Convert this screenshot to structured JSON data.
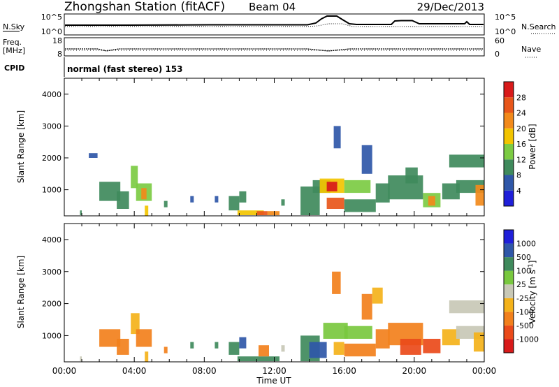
{
  "header": {
    "title": "Zhongshan Station (fitACF)",
    "beam": "Beam 04",
    "date": "29/Dec/2013"
  },
  "status": {
    "nsky_label": "N.Sky",
    "nsky_ticks": [
      "10^5",
      "10^0"
    ],
    "nsearch_label": "N.Search",
    "nsearch_ticks": [
      "10^5",
      "10^0"
    ],
    "freq_label": "Freq.",
    "freq_unit": "[MHz]",
    "freq_ticks": [
      "18",
      "8"
    ],
    "nave_label": "Nave",
    "nave_ticks": [
      "60",
      "0"
    ],
    "cpid_label": "CPID",
    "cpid_text": "normal (fast stereo) 153"
  },
  "colors": {
    "power": [
      "#1f1fd9",
      "#2f57a8",
      "#3f8a5c",
      "#7ccb43",
      "#f2c400",
      "#f28a1b",
      "#e8561a",
      "#d81a1a"
    ],
    "velocity": [
      "#d81a1a",
      "#ea4a1a",
      "#f2801c",
      "#f4b21a",
      "#c8c8b6",
      "#79c83f",
      "#3f8a5c",
      "#2f57a8",
      "#1f1fd9"
    ]
  },
  "chart_data": [
    {
      "type": "heatmap",
      "name": "power",
      "xlabel": "",
      "ylabel": "Slant Range [km]",
      "x_ticks": [
        "00:00",
        "04:00",
        "08:00",
        "12:00",
        "16:00",
        "20:00",
        "00:00"
      ],
      "y_ticks": [
        "1000",
        "2000",
        "3000",
        "4000"
      ],
      "ylim": [
        180,
        4500
      ],
      "xlim_hours": [
        0,
        24
      ],
      "colorbar": {
        "label": "Power [dB]",
        "ticks": [
          "4",
          "8",
          "12",
          "16",
          "20",
          "24",
          "28"
        ],
        "range": [
          0,
          32
        ]
      },
      "patches": [
        {
          "t0": 0.9,
          "t1": 1.0,
          "r0": 200,
          "r1": 350,
          "v": 8
        },
        {
          "t0": 1.4,
          "t1": 1.9,
          "r0": 2000,
          "r1": 2150,
          "v": 6
        },
        {
          "t0": 2.0,
          "t1": 3.2,
          "r0": 650,
          "r1": 1250,
          "v": 9
        },
        {
          "t0": 3.0,
          "t1": 3.7,
          "r0": 400,
          "r1": 950,
          "v": 10
        },
        {
          "t0": 3.8,
          "t1": 4.2,
          "r0": 1050,
          "r1": 1750,
          "v": 14
        },
        {
          "t0": 4.1,
          "t1": 5.0,
          "r0": 650,
          "r1": 1200,
          "v": 13
        },
        {
          "t0": 4.4,
          "t1": 4.7,
          "r0": 700,
          "r1": 1050,
          "v": 21
        },
        {
          "t0": 4.6,
          "t1": 4.8,
          "r0": 180,
          "r1": 500,
          "v": 16
        },
        {
          "t0": 5.7,
          "t1": 5.9,
          "r0": 450,
          "r1": 650,
          "v": 8
        },
        {
          "t0": 7.2,
          "t1": 7.4,
          "r0": 600,
          "r1": 800,
          "v": 6
        },
        {
          "t0": 8.6,
          "t1": 8.8,
          "r0": 600,
          "r1": 800,
          "v": 7
        },
        {
          "t0": 9.4,
          "t1": 10.0,
          "r0": 350,
          "r1": 800,
          "v": 10
        },
        {
          "t0": 10.0,
          "t1": 10.4,
          "r0": 600,
          "r1": 950,
          "v": 9
        },
        {
          "t0": 9.9,
          "t1": 11.4,
          "r0": 200,
          "r1": 350,
          "v": 17
        },
        {
          "t0": 11.0,
          "t1": 11.6,
          "r0": 200,
          "r1": 330,
          "v": 27
        },
        {
          "t0": 11.6,
          "t1": 12.3,
          "r0": 200,
          "r1": 330,
          "v": 20
        },
        {
          "t0": 12.4,
          "t1": 12.6,
          "r0": 500,
          "r1": 700,
          "v": 8
        },
        {
          "t0": 13.5,
          "t1": 14.6,
          "r0": 200,
          "r1": 1100,
          "v": 8
        },
        {
          "t0": 14.2,
          "t1": 15.2,
          "r0": 900,
          "r1": 1300,
          "v": 10
        },
        {
          "t0": 14.6,
          "t1": 16.0,
          "r0": 900,
          "r1": 1350,
          "v": 18
        },
        {
          "t0": 15.0,
          "t1": 15.6,
          "r0": 950,
          "r1": 1250,
          "v": 29
        },
        {
          "t0": 15.0,
          "t1": 16.0,
          "r0": 400,
          "r1": 750,
          "v": 24
        },
        {
          "t0": 15.4,
          "t1": 15.8,
          "r0": 2300,
          "r1": 3000,
          "v": 6
        },
        {
          "t0": 16.0,
          "t1": 17.5,
          "r0": 900,
          "r1": 1300,
          "v": 15
        },
        {
          "t0": 16.0,
          "t1": 17.8,
          "r0": 300,
          "r1": 700,
          "v": 9
        },
        {
          "t0": 17.0,
          "t1": 17.6,
          "r0": 1500,
          "r1": 2400,
          "v": 7
        },
        {
          "t0": 17.8,
          "t1": 18.6,
          "r0": 600,
          "r1": 1200,
          "v": 11
        },
        {
          "t0": 18.5,
          "t1": 20.5,
          "r0": 700,
          "r1": 1450,
          "v": 9
        },
        {
          "t0": 19.5,
          "t1": 20.2,
          "r0": 1200,
          "r1": 1700,
          "v": 8
        },
        {
          "t0": 20.5,
          "t1": 21.5,
          "r0": 450,
          "r1": 900,
          "v": 13
        },
        {
          "t0": 20.8,
          "t1": 21.2,
          "r0": 500,
          "r1": 800,
          "v": 22
        },
        {
          "t0": 21.6,
          "t1": 22.6,
          "r0": 700,
          "r1": 1200,
          "v": 10
        },
        {
          "t0": 22.0,
          "t1": 24.0,
          "r0": 1700,
          "r1": 2100,
          "v": 8
        },
        {
          "t0": 22.4,
          "t1": 24.0,
          "r0": 900,
          "r1": 1300,
          "v": 10
        },
        {
          "t0": 23.5,
          "t1": 24.0,
          "r0": 500,
          "r1": 1150,
          "v": 20
        }
      ]
    },
    {
      "type": "heatmap",
      "name": "velocity",
      "xlabel": "Time UT",
      "ylabel": "Slant Range [km]",
      "x_ticks": [
        "00:00",
        "04:00",
        "08:00",
        "12:00",
        "16:00",
        "20:00",
        "00:00"
      ],
      "y_ticks": [
        "1000",
        "2000",
        "3000",
        "4000"
      ],
      "ylim": [
        180,
        4500
      ],
      "xlim_hours": [
        0,
        24
      ],
      "colorbar": {
        "label": "Velocity [m s",
        "label_sup": "-1",
        "label_end": "]",
        "ticks": [
          "1000",
          "500",
          "100",
          "25",
          "-25",
          "-100",
          "-500",
          "-1000"
        ]
      },
      "patches": [
        {
          "t0": 0.9,
          "t1": 1.0,
          "r0": 200,
          "r1": 350,
          "c": 4
        },
        {
          "t0": 2.0,
          "t1": 3.2,
          "r0": 650,
          "r1": 1200,
          "c": 2
        },
        {
          "t0": 3.0,
          "t1": 3.7,
          "r0": 400,
          "r1": 900,
          "c": 2
        },
        {
          "t0": 3.8,
          "t1": 4.3,
          "r0": 1050,
          "r1": 1700,
          "c": 3
        },
        {
          "t0": 4.1,
          "t1": 5.0,
          "r0": 650,
          "r1": 1200,
          "c": 2
        },
        {
          "t0": 4.6,
          "t1": 4.8,
          "r0": 180,
          "r1": 500,
          "c": 3
        },
        {
          "t0": 5.7,
          "t1": 5.9,
          "r0": 450,
          "r1": 650,
          "c": 2
        },
        {
          "t0": 7.2,
          "t1": 7.4,
          "r0": 600,
          "r1": 800,
          "c": 6
        },
        {
          "t0": 8.6,
          "t1": 8.8,
          "r0": 600,
          "r1": 800,
          "c": 6
        },
        {
          "t0": 9.4,
          "t1": 10.0,
          "r0": 400,
          "r1": 800,
          "c": 6
        },
        {
          "t0": 10.0,
          "t1": 10.4,
          "r0": 600,
          "r1": 950,
          "c": 7
        },
        {
          "t0": 9.9,
          "t1": 12.3,
          "r0": 200,
          "r1": 350,
          "c": 6
        },
        {
          "t0": 11.1,
          "t1": 11.7,
          "r0": 350,
          "r1": 700,
          "c": 2
        },
        {
          "t0": 12.4,
          "t1": 12.6,
          "r0": 500,
          "r1": 700,
          "c": 4
        },
        {
          "t0": 13.5,
          "t1": 14.6,
          "r0": 200,
          "r1": 1000,
          "c": 6
        },
        {
          "t0": 14.0,
          "t1": 15.0,
          "r0": 300,
          "r1": 800,
          "c": 7
        },
        {
          "t0": 14.8,
          "t1": 16.2,
          "r0": 900,
          "r1": 1400,
          "c": 5
        },
        {
          "t0": 15.3,
          "t1": 15.8,
          "r0": 2300,
          "r1": 3000,
          "c": 2
        },
        {
          "t0": 15.4,
          "t1": 16.0,
          "r0": 400,
          "r1": 800,
          "c": 3
        },
        {
          "t0": 16.0,
          "t1": 17.6,
          "r0": 900,
          "r1": 1300,
          "c": 5
        },
        {
          "t0": 16.0,
          "t1": 17.8,
          "r0": 350,
          "r1": 750,
          "c": 2
        },
        {
          "t0": 17.0,
          "t1": 17.6,
          "r0": 1500,
          "r1": 2300,
          "c": 2
        },
        {
          "t0": 17.6,
          "t1": 18.2,
          "r0": 2000,
          "r1": 2500,
          "c": 3
        },
        {
          "t0": 17.8,
          "t1": 18.6,
          "r0": 600,
          "r1": 1200,
          "c": 2
        },
        {
          "t0": 18.5,
          "t1": 20.5,
          "r0": 700,
          "r1": 1400,
          "c": 2
        },
        {
          "t0": 19.2,
          "t1": 20.4,
          "r0": 400,
          "r1": 900,
          "c": 1
        },
        {
          "t0": 20.5,
          "t1": 21.5,
          "r0": 450,
          "r1": 900,
          "c": 1
        },
        {
          "t0": 21.6,
          "t1": 22.6,
          "r0": 700,
          "r1": 1200,
          "c": 3
        },
        {
          "t0": 22.0,
          "t1": 24.0,
          "r0": 1700,
          "r1": 2100,
          "c": 4
        },
        {
          "t0": 22.4,
          "t1": 24.0,
          "r0": 900,
          "r1": 1300,
          "c": 4
        },
        {
          "t0": 23.4,
          "t1": 24.0,
          "r0": 500,
          "r1": 1100,
          "c": 3
        }
      ]
    }
  ]
}
